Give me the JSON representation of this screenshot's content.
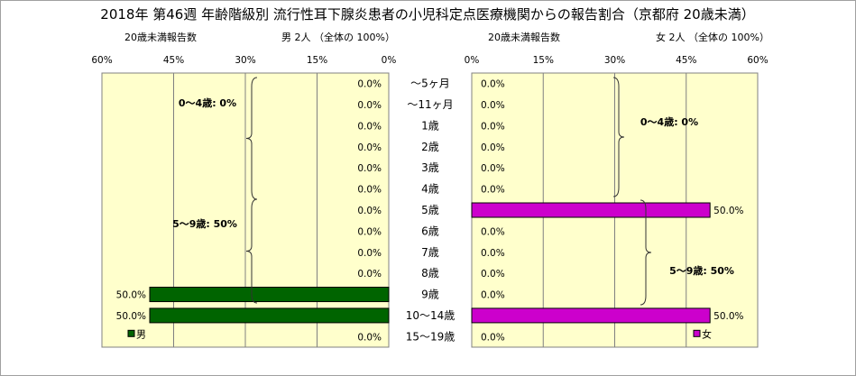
{
  "title": "2018年 第46週 年齢階級別 流行性耳下腺炎患者の小児科定点医療機関からの報告割合（京都府 20歳未満）",
  "chart_data": [
    {
      "type": "bar",
      "orientation": "horizontal",
      "direction": "right-to-left",
      "header_left": "20歳未満報告数",
      "header_right": "男  2人  （全体の  100%）",
      "xlim": [
        0,
        60
      ],
      "x_ticks": [
        "60%",
        "45%",
        "30%",
        "15%",
        "0%"
      ],
      "categories": [
        "～5ヶ月",
        "～11ヶ月",
        "1歳",
        "2歳",
        "3歳",
        "4歳",
        "5歳",
        "6歳",
        "7歳",
        "8歳",
        "9歳",
        "10～14歳",
        "15～19歳"
      ],
      "values": [
        0,
        0,
        0,
        0,
        0,
        0,
        0,
        0,
        0,
        0,
        50,
        50,
        0
      ],
      "value_labels": [
        "0.0%",
        "0.0%",
        "0.0%",
        "0.0%",
        "0.0%",
        "0.0%",
        "0.0%",
        "0.0%",
        "0.0%",
        "0.0%",
        "50.0%",
        "50.0%",
        "0.0%"
      ],
      "series": [
        {
          "name": "男",
          "color": "#006400"
        }
      ],
      "annotations": [
        "0～4歳: 0%",
        "5～9歳: 50%"
      ],
      "legend": "bottom-left",
      "grid": true
    },
    {
      "type": "bar",
      "orientation": "horizontal",
      "direction": "left-to-right",
      "header_left": "20歳未満報告数",
      "header_right": "女  2人  （全体の  100%）",
      "xlim": [
        0,
        60
      ],
      "x_ticks": [
        "0%",
        "15%",
        "30%",
        "45%",
        "60%"
      ],
      "categories": [
        "～5ヶ月",
        "～11ヶ月",
        "1歳",
        "2歳",
        "3歳",
        "4歳",
        "5歳",
        "6歳",
        "7歳",
        "8歳",
        "9歳",
        "10～14歳",
        "15～19歳"
      ],
      "values": [
        0,
        0,
        0,
        0,
        0,
        0,
        50,
        0,
        0,
        0,
        0,
        50,
        0
      ],
      "value_labels": [
        "0.0%",
        "0.0%",
        "0.0%",
        "0.0%",
        "0.0%",
        "0.0%",
        "50.0%",
        "0.0%",
        "0.0%",
        "0.0%",
        "0.0%",
        "50.0%",
        "0.0%"
      ],
      "series": [
        {
          "name": "女",
          "color": "#cc00cc"
        }
      ],
      "annotations": [
        "0～4歳: 0%",
        "5～9歳: 50%"
      ],
      "legend": "bottom-right",
      "grid": true
    }
  ]
}
